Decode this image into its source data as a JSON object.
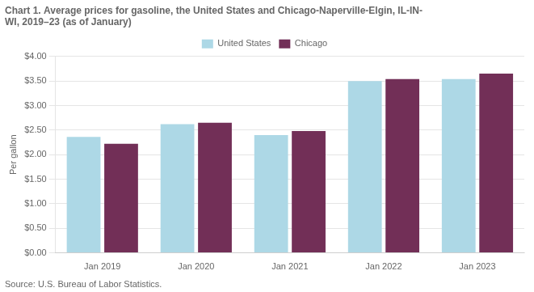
{
  "chart_data": {
    "type": "bar",
    "title": "Chart 1. Average prices for gasoline, the United States and Chicago-Naperville-Elgin, IL-IN-\nWI, 2019–23 (as of January)",
    "ylabel": "Per gallon",
    "source": "Source: U.S. Bureau of Labor Statistics.",
    "categories": [
      "Jan 2019",
      "Jan 2020",
      "Jan 2021",
      "Jan 2022",
      "Jan 2023"
    ],
    "series": [
      {
        "name": "United States",
        "color": "#ADD8E6",
        "values": [
          2.36,
          2.62,
          2.4,
          3.5,
          3.54
        ]
      },
      {
        "name": "Chicago",
        "color": "#722F57",
        "values": [
          2.22,
          2.65,
          2.48,
          3.54,
          3.65
        ]
      }
    ],
    "ylim": [
      0,
      4.0
    ],
    "yticks": [
      {
        "value": 0.0,
        "label": "$0.00"
      },
      {
        "value": 0.5,
        "label": "$0.50"
      },
      {
        "value": 1.0,
        "label": "$1.00"
      },
      {
        "value": 1.5,
        "label": "$1.50"
      },
      {
        "value": 2.0,
        "label": "$2.00"
      },
      {
        "value": 2.5,
        "label": "$2.50"
      },
      {
        "value": 3.0,
        "label": "$3.00"
      },
      {
        "value": 3.5,
        "label": "$3.50"
      },
      {
        "value": 4.0,
        "label": "$4.00"
      }
    ],
    "grid": true,
    "legend": "top"
  }
}
